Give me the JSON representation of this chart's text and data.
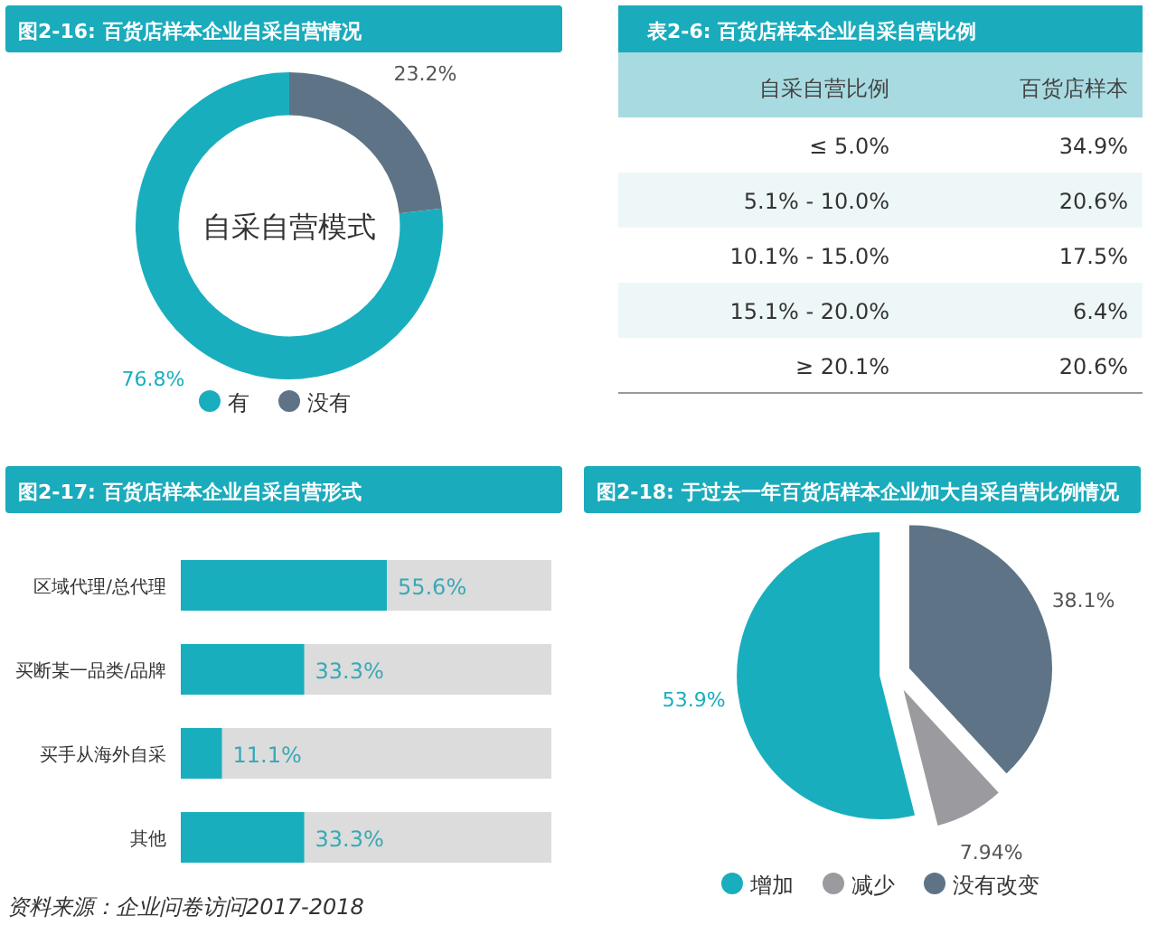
{
  "chart_data": [
    {
      "type": "donut",
      "title": "图2-16: 百货店样本企业自采自营情况",
      "categories": [
        "有",
        "没有"
      ],
      "values": [
        76.8,
        23.2
      ],
      "colors": [
        "#19aebe",
        "#5e7486"
      ],
      "value_labels": [
        "76.8%",
        "23.2%"
      ],
      "annotations": [
        "自采自营模式"
      ],
      "legend": "bottom"
    },
    {
      "type": "other",
      "title": "表2-6: 百货店样本企业自采自营比例",
      "annotations": [
        "自采自营比例",
        "百货店样本"
      ],
      "categories": [
        "≤ 5.0%",
        "5.1% - 10.0%",
        "10.1% - 15.0%",
        "15.1% - 20.0%",
        "≥ 20.1%"
      ],
      "value_labels": [
        "34.9%",
        "20.6%",
        "17.5%",
        "6.4%",
        "20.6%"
      ]
    },
    {
      "type": "bar",
      "orientation": "horizontal",
      "title": "图2-17: 百货店样本企业自采自营形式",
      "categories": [
        "区域代理/总代理",
        "买断某一品类/品牌",
        "买手从海外自采",
        "其他"
      ],
      "values": [
        55.6,
        33.3,
        11.1,
        33.3
      ],
      "value_labels": [
        "55.6%",
        "33.3%",
        "11.1%",
        "33.3%"
      ],
      "color": "#19aebe",
      "xlim": [
        0,
        100
      ],
      "tick_labels": "y",
      "annotations": [
        "资料来源：企业问卷访问2017-2018"
      ]
    },
    {
      "type": "pie",
      "title": "图2-18: 于过去一年百货店样本企业加大自采自营比例情况",
      "categories": [
        "增加",
        "减少",
        "没有改变"
      ],
      "values": [
        53.9,
        7.94,
        38.1
      ],
      "colors": [
        "#19aebe",
        "#9b9b9f",
        "#5e7486"
      ],
      "value_labels": [
        "53.9%",
        "7.94%",
        "38.1%"
      ],
      "legend": "bottom"
    }
  ]
}
